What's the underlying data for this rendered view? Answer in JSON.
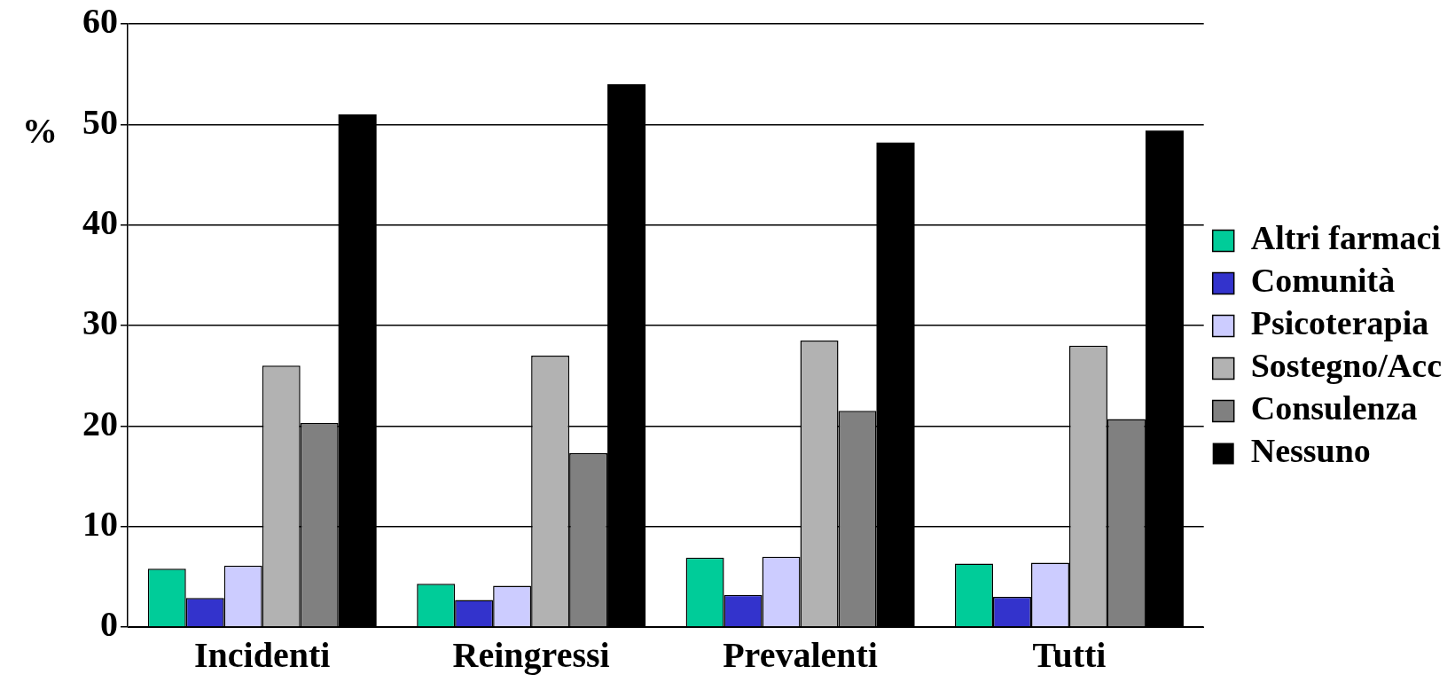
{
  "chart_data": {
    "type": "bar",
    "ylabel": "%",
    "categories": [
      "Incidenti",
      "Reingressi",
      "Prevalenti",
      "Tutti"
    ],
    "series": [
      {
        "name": "Altri farmaci",
        "color": "#00cc99",
        "values": [
          5.8,
          4.3,
          6.9,
          6.3
        ]
      },
      {
        "name": "Comunità",
        "color": "#3333cc",
        "values": [
          2.9,
          2.7,
          3.2,
          3.0
        ]
      },
      {
        "name": "Psicoterapia",
        "color": "#ccccff",
        "values": [
          6.1,
          4.1,
          7.0,
          6.4
        ]
      },
      {
        "name": "Sostegno/Acc",
        "color": "#b2b2b2",
        "values": [
          26.0,
          27.0,
          28.5,
          28.0
        ]
      },
      {
        "name": "Consulenza",
        "color": "#808080",
        "values": [
          20.3,
          17.3,
          21.5,
          20.7
        ]
      },
      {
        "name": "Nessuno",
        "color": "#000000",
        "values": [
          51,
          54,
          48.2,
          49.4
        ]
      }
    ],
    "ylim": [
      0,
      60
    ],
    "yticks": [
      0,
      10,
      20,
      30,
      40,
      50,
      60
    ],
    "grid": "y",
    "legend": "right"
  }
}
